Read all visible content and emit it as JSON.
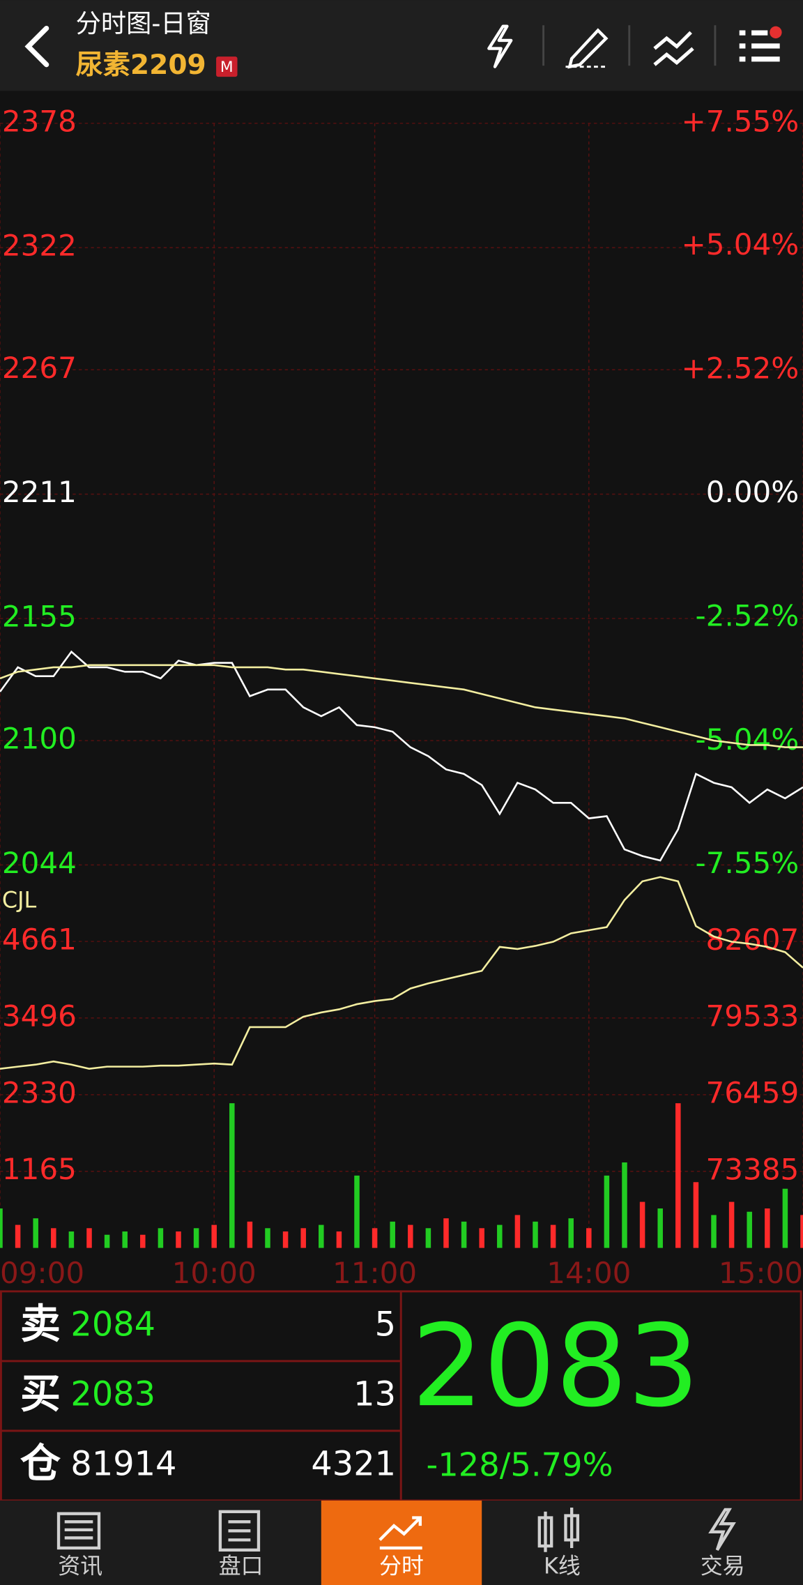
{
  "header": {
    "title": "分时图-日窗",
    "symbol": "尿素2209",
    "badge": "M"
  },
  "chart_data": [
    {
      "type": "line",
      "x": [
        0,
        5,
        10,
        15,
        20,
        25,
        30,
        35,
        40,
        45,
        50,
        55,
        60,
        65,
        70,
        75,
        80,
        85,
        90,
        95,
        100,
        105,
        110,
        115,
        120,
        125,
        130,
        135,
        140,
        145,
        150,
        155,
        160,
        165,
        170,
        175,
        180,
        185,
        190,
        195,
        200,
        205,
        210,
        215,
        220,
        225
      ],
      "xlim": [
        0,
        225
      ],
      "ylim": [
        2044,
        2378
      ],
      "yticks": [
        2044,
        2100,
        2155,
        2211,
        2267,
        2322,
        2378
      ],
      "y2lim": [
        -7.55,
        7.55
      ],
      "y2ticks": [
        {
          "value": -7.55,
          "label": "-7.55%"
        },
        {
          "value": -5.04,
          "label": "-5.04%"
        },
        {
          "value": -2.52,
          "label": "-2.52%"
        },
        {
          "value": 0,
          "label": "0.00%"
        },
        {
          "value": 2.52,
          "label": "+2.52%"
        },
        {
          "value": 5.04,
          "label": "+5.04%"
        },
        {
          "value": 7.55,
          "label": "+7.55%"
        }
      ],
      "grid": true,
      "series": [
        {
          "color": "#ffffff",
          "values": [
            2122,
            2133,
            2129,
            2129,
            2140,
            2133,
            2133,
            2131,
            2131,
            2128,
            2136,
            2134,
            2135,
            2135,
            2120,
            2123,
            2123,
            2115,
            2111,
            2115,
            2107,
            2106,
            2104,
            2097,
            2093,
            2087,
            2085,
            2080,
            2067,
            2081,
            2078,
            2072,
            2072,
            2065,
            2066,
            2051,
            2048,
            2046,
            2060,
            2085,
            2081,
            2079,
            2072,
            2078,
            2074,
            2079
          ]
        },
        {
          "color": "#f3eea0",
          "values": [
            2128,
            2131,
            2132,
            2133,
            2133,
            2134,
            2134,
            2134,
            2134,
            2134,
            2134,
            2134,
            2134,
            2133,
            2133,
            2133,
            2132,
            2132,
            2131,
            2130,
            2129,
            2128,
            2127,
            2126,
            2125,
            2124,
            2123,
            2121,
            2119,
            2117,
            2115,
            2114,
            2113,
            2112,
            2111,
            2110,
            2108,
            2106,
            2104,
            2102,
            2100,
            2099,
            2098,
            2098,
            2097,
            2097
          ]
        }
      ]
    },
    {
      "type": "bar",
      "title": "CJL",
      "x": [
        0,
        5,
        10,
        15,
        20,
        25,
        30,
        35,
        40,
        45,
        50,
        55,
        60,
        65,
        70,
        75,
        80,
        85,
        90,
        95,
        100,
        105,
        110,
        115,
        120,
        125,
        130,
        135,
        140,
        145,
        150,
        155,
        160,
        165,
        170,
        175,
        180,
        185,
        190,
        195,
        200,
        205,
        210,
        215,
        220,
        225
      ],
      "xlim": [
        0,
        225
      ],
      "xticks": [
        {
          "value": 0,
          "label": "09:00"
        },
        {
          "value": 60,
          "label": "10:00"
        },
        {
          "value": 105,
          "label": "11:00"
        },
        {
          "value": 165,
          "label": "14:00"
        },
        {
          "value": 225,
          "label": "15:00"
        }
      ],
      "ylim": [
        0,
        5670
      ],
      "yticks": [
        1165,
        2330,
        3496,
        4661
      ],
      "y2lim": [
        70311,
        85283
      ],
      "y2ticks": [
        73385,
        76459,
        79533,
        82607
      ],
      "grid": true,
      "series": [
        {
          "values": [
            600,
            350,
            450,
            300,
            250,
            300,
            200,
            250,
            200,
            300,
            250,
            300,
            350,
            2200,
            400,
            300,
            250,
            300,
            350,
            250,
            1100,
            300,
            400,
            350,
            300,
            450,
            400,
            300,
            350,
            500,
            400,
            350,
            450,
            300,
            1100,
            1300,
            700,
            600,
            2200,
            1000,
            500,
            700,
            550,
            600,
            900,
            500
          ],
          "colors": [
            "#22cc22",
            "#ff2a2a",
            "#22cc22",
            "#ff2a2a",
            "#22cc22",
            "#ff2a2a",
            "#22cc22",
            "#22cc22",
            "#ff2a2a",
            "#22cc22",
            "#ff2a2a",
            "#22cc22",
            "#ff2a2a",
            "#22cc22",
            "#ff2a2a",
            "#22cc22",
            "#ff2a2a",
            "#ff2a2a",
            "#22cc22",
            "#ff2a2a",
            "#22cc22",
            "#ff2a2a",
            "#22cc22",
            "#ff2a2a",
            "#22cc22",
            "#ff2a2a",
            "#22cc22",
            "#ff2a2a",
            "#22cc22",
            "#ff2a2a",
            "#22cc22",
            "#ff2a2a",
            "#22cc22",
            "#ff2a2a",
            "#22cc22",
            "#22cc22",
            "#ff2a2a",
            "#22cc22",
            "#ff2a2a",
            "#ff2a2a",
            "#22cc22",
            "#ff2a2a",
            "#22cc22",
            "#ff2a2a",
            "#22cc22",
            "#ff2a2a"
          ]
        },
        {
          "type": "line",
          "axis": "y2",
          "color": "#f3eea0",
          "values": [
            77505,
            77589,
            77672,
            77798,
            77672,
            77505,
            77589,
            77589,
            77589,
            77630,
            77630,
            77672,
            77714,
            77672,
            79178,
            79178,
            79178,
            79596,
            79763,
            79889,
            80098,
            80223,
            80307,
            80725,
            80934,
            81102,
            81269,
            81436,
            82398,
            82314,
            82440,
            82607,
            82942,
            83067,
            83192,
            84280,
            85033,
            85200,
            85033,
            83234,
            82816,
            82607,
            82523,
            82398,
            82189,
            81562
          ]
        }
      ]
    }
  ],
  "quote": {
    "rows": [
      {
        "label": "卖",
        "price": 2084,
        "volume": 5
      },
      {
        "label": "买",
        "price": 2083,
        "volume": 13
      },
      {
        "label": "仓",
        "price": 81914,
        "volume": 4321
      }
    ],
    "last": 2083,
    "change": "-128/5.79%"
  },
  "tabs": [
    {
      "label": "资讯"
    },
    {
      "label": "盘口"
    },
    {
      "label": "分时",
      "active": true
    },
    {
      "label": "K线"
    },
    {
      "label": "交易"
    }
  ]
}
